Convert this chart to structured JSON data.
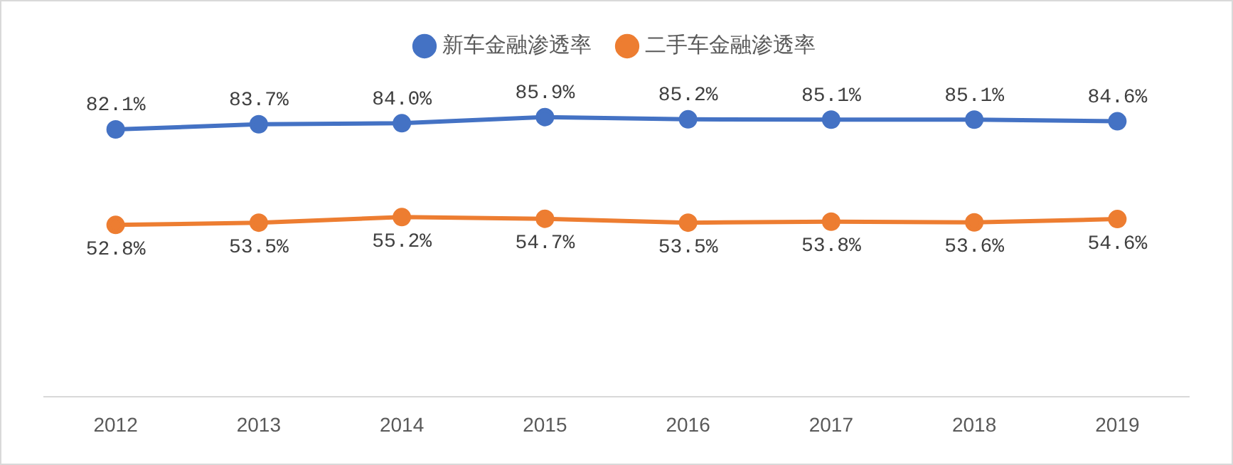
{
  "chart_data": {
    "type": "line",
    "categories": [
      "2012",
      "2013",
      "2014",
      "2015",
      "2016",
      "2017",
      "2018",
      "2019"
    ],
    "series": [
      {
        "name": "新车金融渗透率",
        "color": "#4472c4",
        "values": [
          82.1,
          83.7,
          84.0,
          85.9,
          85.2,
          85.1,
          85.1,
          84.6
        ],
        "value_labels": [
          "82.1%",
          "83.7%",
          "84.0%",
          "85.9%",
          "85.2%",
          "85.1%",
          "85.1%",
          "84.6%"
        ]
      },
      {
        "name": "二手车金融渗透率",
        "color": "#ed7d31",
        "values": [
          52.8,
          53.5,
          55.2,
          54.7,
          53.5,
          53.8,
          53.6,
          54.6
        ],
        "value_labels": [
          "52.8%",
          "53.5%",
          "55.2%",
          "54.7%",
          "53.5%",
          "53.8%",
          "53.6%",
          "54.6%"
        ]
      }
    ],
    "legend": "top",
    "marker": "circle",
    "line_style": "solid",
    "grid": false,
    "tick_labels": "x"
  }
}
